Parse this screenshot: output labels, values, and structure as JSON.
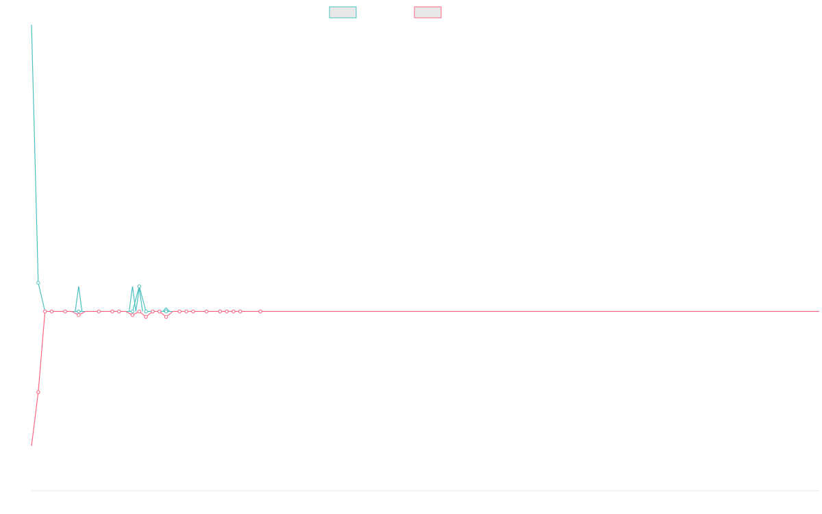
{
  "chart_data": {
    "type": "line",
    "title": "",
    "xlabel": "",
    "ylabel": "",
    "grid": false,
    "legend_position": "top-center",
    "x_count": 118,
    "ylim": [
      -100,
      160
    ],
    "series": [
      {
        "color": "#4bc0c0",
        "fill": "#e8e8e8",
        "points": [
          [
            0,
            160
          ],
          [
            1,
            16
          ],
          [
            2,
            0
          ],
          [
            3,
            0
          ],
          [
            4,
            0
          ],
          [
            5,
            0
          ],
          [
            6,
            0
          ],
          [
            7,
            0
          ],
          [
            8,
            0
          ],
          [
            9,
            0
          ],
          [
            10,
            0
          ],
          [
            11,
            0
          ],
          [
            12,
            0
          ],
          [
            13,
            0
          ],
          [
            14,
            0
          ],
          [
            15,
            0
          ],
          [
            16,
            14
          ],
          [
            17,
            0
          ],
          [
            18,
            0
          ],
          [
            19,
            0
          ],
          [
            20,
            0
          ],
          [
            21,
            0
          ],
          [
            22,
            0
          ],
          [
            23,
            0
          ],
          [
            24,
            0
          ],
          [
            25,
            0
          ],
          [
            26,
            0
          ],
          [
            27,
            0
          ],
          [
            28,
            0
          ],
          [
            29,
            0
          ],
          [
            30,
            0
          ],
          [
            31,
            0
          ],
          [
            32,
            0
          ],
          [
            33,
            0
          ],
          [
            34,
            0
          ],
          [
            35,
            0
          ],
          [
            36,
            0
          ],
          [
            37,
            0
          ],
          [
            38,
            0
          ],
          [
            39,
            0
          ],
          [
            40,
            0
          ],
          [
            41,
            0
          ],
          [
            42,
            0
          ],
          [
            43,
            0
          ],
          [
            44,
            0
          ],
          [
            45,
            0
          ],
          [
            46,
            0
          ],
          [
            47,
            0
          ],
          [
            48,
            0
          ],
          [
            49,
            0
          ],
          [
            50,
            0
          ],
          [
            51,
            0
          ],
          [
            52,
            0
          ],
          [
            53,
            0
          ],
          [
            54,
            0
          ],
          [
            55,
            0
          ],
          [
            56,
            0
          ],
          [
            57,
            0
          ],
          [
            58,
            0
          ],
          [
            59,
            0
          ],
          [
            60,
            0
          ],
          [
            61,
            0
          ],
          [
            62,
            0
          ],
          [
            63,
            0
          ],
          [
            64,
            0
          ],
          [
            65,
            0
          ],
          [
            66,
            0
          ],
          [
            67,
            0
          ],
          [
            68,
            0
          ],
          [
            69,
            0
          ],
          [
            70,
            0
          ],
          [
            71,
            0
          ],
          [
            72,
            0
          ],
          [
            73,
            0
          ],
          [
            74,
            0
          ],
          [
            75,
            0
          ],
          [
            76,
            0
          ],
          [
            77,
            0
          ],
          [
            78,
            0
          ],
          [
            79,
            0
          ],
          [
            80,
            0
          ],
          [
            81,
            0
          ],
          [
            82,
            0
          ],
          [
            83,
            0
          ],
          [
            84,
            0
          ],
          [
            85,
            0
          ],
          [
            86,
            0
          ],
          [
            87,
            0
          ],
          [
            88,
            0
          ],
          [
            89,
            0
          ],
          [
            90,
            0
          ],
          [
            91,
            0
          ],
          [
            92,
            0
          ],
          [
            93,
            0
          ],
          [
            94,
            0
          ],
          [
            95,
            0
          ],
          [
            96,
            0
          ],
          [
            97,
            0
          ],
          [
            98,
            0
          ],
          [
            99,
            0
          ],
          [
            100,
            0
          ],
          [
            101,
            0
          ],
          [
            102,
            0
          ],
          [
            103,
            0
          ],
          [
            104,
            0
          ],
          [
            105,
            0
          ],
          [
            106,
            0
          ],
          [
            107,
            0
          ],
          [
            108,
            0
          ],
          [
            109,
            0
          ],
          [
            110,
            0
          ],
          [
            111,
            0
          ],
          [
            112,
            0
          ],
          [
            113,
            0
          ],
          [
            114,
            0
          ],
          [
            115,
            0
          ],
          [
            116,
            0
          ],
          [
            117,
            0
          ]
        ],
        "spikes": [
          {
            "x": 7,
            "y": 14
          },
          {
            "x": 15,
            "y": 14
          },
          {
            "x": 16,
            "y": 13
          },
          {
            "x": 20,
            "y": 2
          }
        ],
        "markers_x": [
          1,
          2,
          3,
          5,
          7,
          10,
          12,
          13,
          15,
          16,
          17,
          18,
          19,
          20,
          22,
          23,
          24,
          26,
          28,
          29,
          30,
          31,
          34
        ]
      },
      {
        "color": "#ff6384",
        "fill": "#e8e8e8",
        "points": [
          [
            0,
            -75
          ],
          [
            1,
            -45
          ],
          [
            2,
            0
          ],
          [
            3,
            0
          ],
          [
            4,
            0
          ],
          [
            5,
            0
          ],
          [
            6,
            0
          ],
          [
            7,
            -2
          ],
          [
            8,
            0
          ],
          [
            9,
            0
          ],
          [
            10,
            0
          ],
          [
            11,
            0
          ],
          [
            12,
            0
          ],
          [
            13,
            0
          ],
          [
            14,
            0
          ],
          [
            15,
            -2
          ],
          [
            16,
            0
          ],
          [
            17,
            -3
          ],
          [
            18,
            0
          ],
          [
            19,
            0
          ],
          [
            20,
            -3
          ],
          [
            21,
            0
          ],
          [
            22,
            0
          ],
          [
            23,
            0
          ],
          [
            24,
            0
          ],
          [
            25,
            0
          ],
          [
            26,
            0
          ],
          [
            27,
            0
          ],
          [
            28,
            0
          ],
          [
            29,
            0
          ],
          [
            30,
            0
          ],
          [
            31,
            0
          ],
          [
            32,
            0
          ],
          [
            33,
            0
          ],
          [
            34,
            0
          ],
          [
            35,
            0
          ],
          [
            36,
            0
          ],
          [
            37,
            0
          ],
          [
            38,
            0
          ],
          [
            39,
            0
          ],
          [
            40,
            0
          ],
          [
            41,
            0
          ],
          [
            42,
            0
          ],
          [
            43,
            0
          ],
          [
            44,
            0
          ],
          [
            45,
            0
          ],
          [
            46,
            0
          ],
          [
            47,
            0
          ],
          [
            48,
            0
          ],
          [
            49,
            0
          ],
          [
            50,
            0
          ],
          [
            51,
            0
          ],
          [
            52,
            0
          ],
          [
            53,
            0
          ],
          [
            54,
            0
          ],
          [
            55,
            0
          ],
          [
            56,
            0
          ],
          [
            57,
            0
          ],
          [
            58,
            0
          ],
          [
            59,
            0
          ],
          [
            60,
            0
          ],
          [
            61,
            0
          ],
          [
            62,
            0
          ],
          [
            63,
            0
          ],
          [
            64,
            0
          ],
          [
            65,
            0
          ],
          [
            66,
            0
          ],
          [
            67,
            0
          ],
          [
            68,
            0
          ],
          [
            69,
            0
          ],
          [
            70,
            0
          ],
          [
            71,
            0
          ],
          [
            72,
            0
          ],
          [
            73,
            0
          ],
          [
            74,
            0
          ],
          [
            75,
            0
          ],
          [
            76,
            0
          ],
          [
            77,
            0
          ],
          [
            78,
            0
          ],
          [
            79,
            0
          ],
          [
            80,
            0
          ],
          [
            81,
            0
          ],
          [
            82,
            0
          ],
          [
            83,
            0
          ],
          [
            84,
            0
          ],
          [
            85,
            0
          ],
          [
            86,
            0
          ],
          [
            87,
            0
          ],
          [
            88,
            0
          ],
          [
            89,
            0
          ],
          [
            90,
            0
          ],
          [
            91,
            0
          ],
          [
            92,
            0
          ],
          [
            93,
            0
          ],
          [
            94,
            0
          ],
          [
            95,
            0
          ],
          [
            96,
            0
          ],
          [
            97,
            0
          ],
          [
            98,
            0
          ],
          [
            99,
            0
          ],
          [
            100,
            0
          ],
          [
            101,
            0
          ],
          [
            102,
            0
          ],
          [
            103,
            0
          ],
          [
            104,
            0
          ],
          [
            105,
            0
          ],
          [
            106,
            0
          ],
          [
            107,
            0
          ],
          [
            108,
            0
          ],
          [
            109,
            0
          ],
          [
            110,
            0
          ],
          [
            111,
            0
          ],
          [
            112,
            0
          ],
          [
            113,
            0
          ],
          [
            114,
            0
          ],
          [
            115,
            0
          ],
          [
            116,
            0
          ],
          [
            117,
            0
          ]
        ],
        "markers_x": [
          1,
          2,
          3,
          5,
          7,
          10,
          12,
          13,
          15,
          16,
          17,
          18,
          19,
          20,
          22,
          23,
          24,
          26,
          28,
          29,
          30,
          31,
          34
        ]
      }
    ]
  }
}
